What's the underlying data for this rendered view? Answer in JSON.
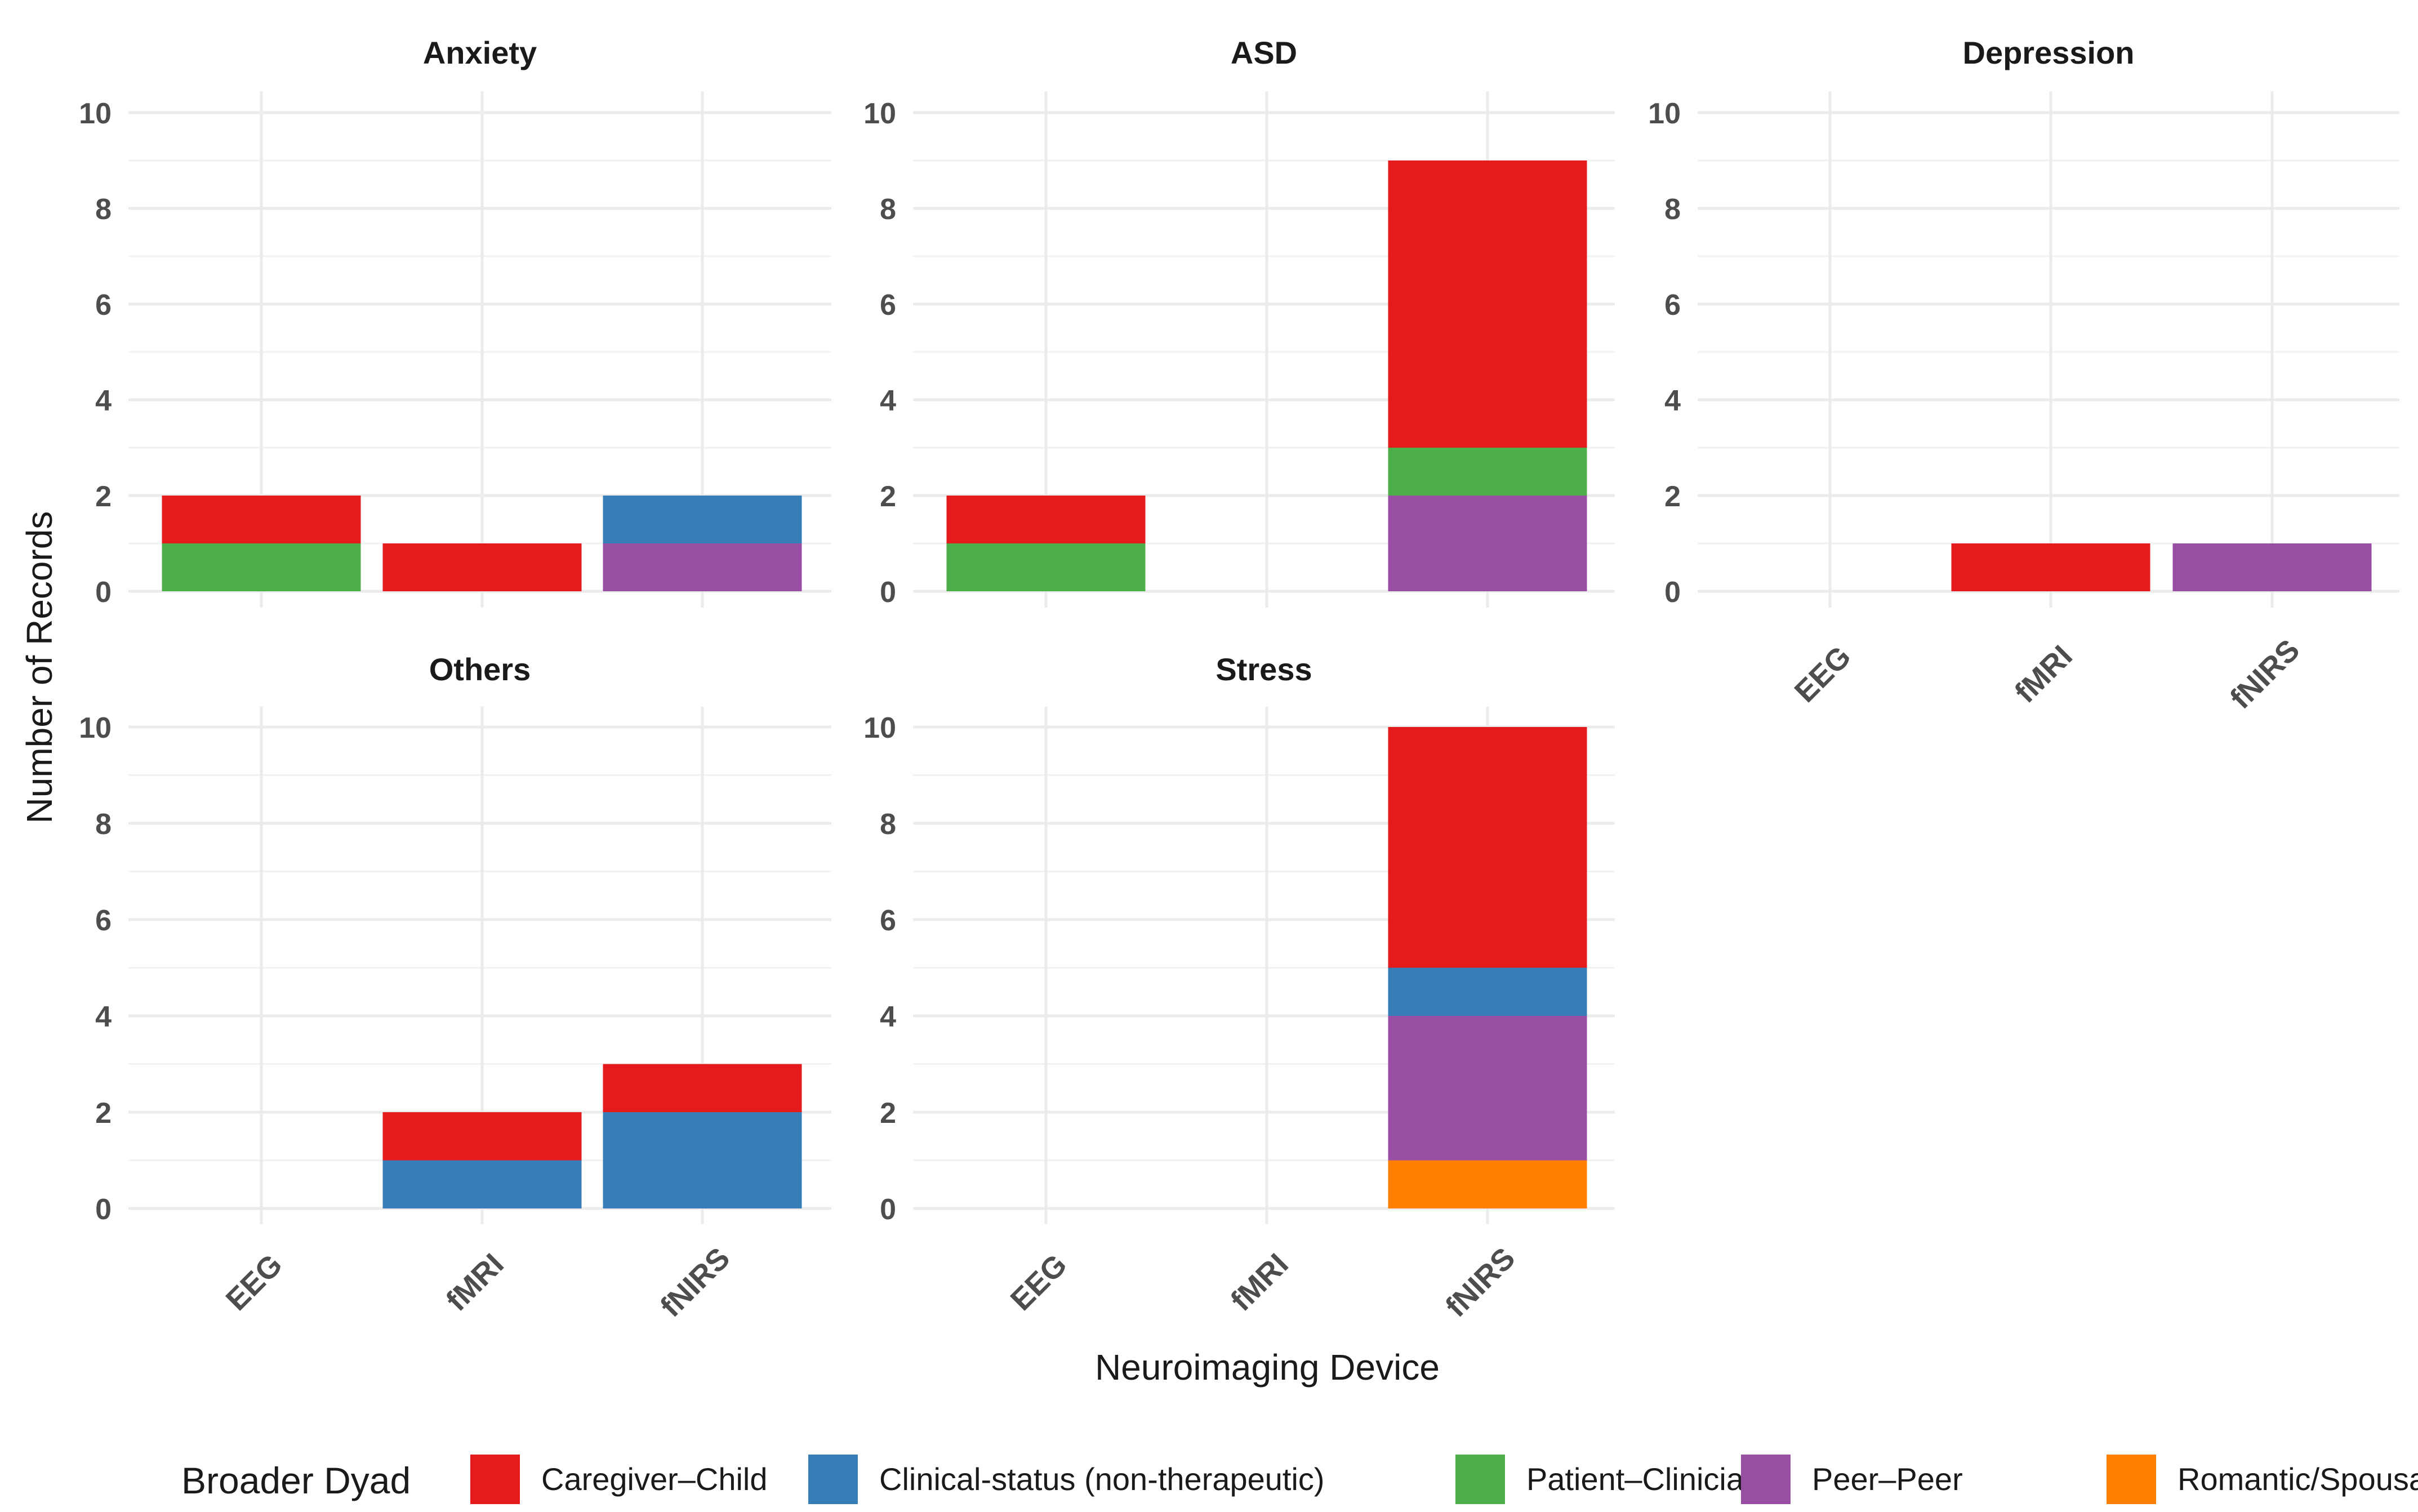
{
  "chart_data": {
    "type": "bar",
    "stacked": true,
    "xlabel": "Neuroimaging Device",
    "ylabel": "Number of Records",
    "ylim": [
      0,
      10
    ],
    "yticks": [
      0,
      2,
      4,
      6,
      8,
      10
    ],
    "categories": [
      "EEG",
      "fMRI",
      "fNIRS"
    ],
    "legend": {
      "title": "Broader Dyad",
      "position": "bottom",
      "entries": [
        {
          "name": "Caregiver–Child",
          "color": "#E41A1C"
        },
        {
          "name": "Clinical-status (non-therapeutic)",
          "color": "#377EB8"
        },
        {
          "name": "Patient–Clinician",
          "color": "#4DAF4A"
        },
        {
          "name": "Peer–Peer",
          "color": "#984EA3"
        },
        {
          "name": "Romantic/Spousal",
          "color": "#FF7F00"
        }
      ]
    },
    "panels": [
      {
        "title": "Anxiety",
        "series": [
          {
            "name": "Caregiver–Child",
            "values": [
              1,
              1,
              0
            ]
          },
          {
            "name": "Clinical-status (non-therapeutic)",
            "values": [
              0,
              0,
              1
            ]
          },
          {
            "name": "Patient–Clinician",
            "values": [
              1,
              0,
              0
            ]
          },
          {
            "name": "Peer–Peer",
            "values": [
              0,
              0,
              1
            ]
          },
          {
            "name": "Romantic/Spousal",
            "values": [
              0,
              0,
              0
            ]
          }
        ]
      },
      {
        "title": "ASD",
        "series": [
          {
            "name": "Caregiver–Child",
            "values": [
              1,
              0,
              6
            ]
          },
          {
            "name": "Clinical-status (non-therapeutic)",
            "values": [
              0,
              0,
              0
            ]
          },
          {
            "name": "Patient–Clinician",
            "values": [
              1,
              0,
              1
            ]
          },
          {
            "name": "Peer–Peer",
            "values": [
              0,
              0,
              2
            ]
          },
          {
            "name": "Romantic/Spousal",
            "values": [
              0,
              0,
              0
            ]
          }
        ]
      },
      {
        "title": "Depression",
        "series": [
          {
            "name": "Caregiver–Child",
            "values": [
              0,
              1,
              0
            ]
          },
          {
            "name": "Clinical-status (non-therapeutic)",
            "values": [
              0,
              0,
              0
            ]
          },
          {
            "name": "Patient–Clinician",
            "values": [
              0,
              0,
              0
            ]
          },
          {
            "name": "Peer–Peer",
            "values": [
              0,
              0,
              1
            ]
          },
          {
            "name": "Romantic/Spousal",
            "values": [
              0,
              0,
              0
            ]
          }
        ]
      },
      {
        "title": "Others",
        "series": [
          {
            "name": "Caregiver–Child",
            "values": [
              0,
              1,
              1
            ]
          },
          {
            "name": "Clinical-status (non-therapeutic)",
            "values": [
              0,
              1,
              2
            ]
          },
          {
            "name": "Patient–Clinician",
            "values": [
              0,
              0,
              0
            ]
          },
          {
            "name": "Peer–Peer",
            "values": [
              0,
              0,
              0
            ]
          },
          {
            "name": "Romantic/Spousal",
            "values": [
              0,
              0,
              0
            ]
          }
        ]
      },
      {
        "title": "Stress",
        "series": [
          {
            "name": "Caregiver–Child",
            "values": [
              0,
              0,
              5
            ]
          },
          {
            "name": "Clinical-status (non-therapeutic)",
            "values": [
              0,
              0,
              1
            ]
          },
          {
            "name": "Patient–Clinician",
            "values": [
              0,
              0,
              0
            ]
          },
          {
            "name": "Peer–Peer",
            "values": [
              0,
              0,
              3
            ]
          },
          {
            "name": "Romantic/Spousal",
            "values": [
              0,
              0,
              1
            ]
          }
        ]
      }
    ]
  }
}
